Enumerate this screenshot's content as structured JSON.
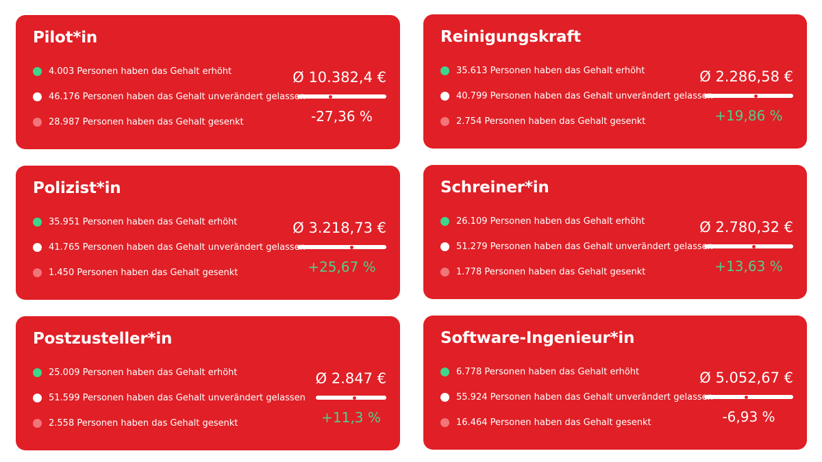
{
  "cards": [
    {
      "title": "Pilot*in",
      "increased": "4.003 Personen haben das Gehalt erhöht",
      "unchanged": "46.176 Personen haben das Gehalt unverändert gelassen",
      "decreased": "28.987 Personen haben das Gehalt gesenkt",
      "average": "Ø 10.382,4 €",
      "change": "-27,36 %",
      "change_direction": "negative",
      "indicator_fraction": 0.37
    },
    {
      "title": "Reinigungskraft",
      "increased": "35.613 Personen haben das Gehalt erhöht",
      "unchanged": "40.799 Personen haben das Gehalt unverändert gelassen",
      "decreased": "2.754 Personen haben das Gehalt gesenkt",
      "average": "Ø 2.286,58 €",
      "change": "+19,86 %",
      "change_direction": "positive",
      "indicator_fraction": 0.58
    },
    {
      "title": "Polizist*in",
      "increased": "35.951 Personen haben das Gehalt erhöht",
      "unchanged": "41.765 Personen haben das Gehalt unverändert gelassen",
      "decreased": "1.450 Personen haben das Gehalt gesenkt",
      "average": "Ø 3.218,73 €",
      "change": "+25,67 %",
      "change_direction": "positive",
      "indicator_fraction": 0.61
    },
    {
      "title": "Schreiner*in",
      "increased": "26.109 Personen haben das Gehalt erhöht",
      "unchanged": "51.279 Personen haben das Gehalt unverändert gelassen",
      "decreased": "1.778 Personen haben das Gehalt gesenkt",
      "average": "Ø 2.780,32 €",
      "change": "+13,63 %",
      "change_direction": "positive",
      "indicator_fraction": 0.56
    },
    {
      "title": "Postzusteller*in",
      "increased": "25.009 Personen haben das Gehalt erhöht",
      "unchanged": "51.599 Personen haben das Gehalt unverändert gelassen",
      "decreased": "2.558 Personen haben das Gehalt gesenkt",
      "average": "Ø 2.847 €",
      "change": "+11,3 %",
      "change_direction": "positive",
      "indicator_fraction": 0.55
    },
    {
      "title": "Software-Ingenieur*in",
      "increased": "6.778 Personen haben das Gehalt erhöht",
      "unchanged": "55.924 Personen haben das Gehalt unverändert gelassen",
      "decreased": "16.464 Personen haben das Gehalt gesenkt",
      "average": "Ø 5.052,67 €",
      "change": "-6,93 %",
      "change_direction": "negative",
      "indicator_fraction": 0.47
    }
  ],
  "colors": {
    "card_background": "#e01f26",
    "increase_dot": "#3dd68c",
    "unchanged_dot": "#ffffff",
    "decrease_dot": "#f2757a",
    "positive_change": "#52cf8b",
    "negative_change": "#ffffff"
  }
}
